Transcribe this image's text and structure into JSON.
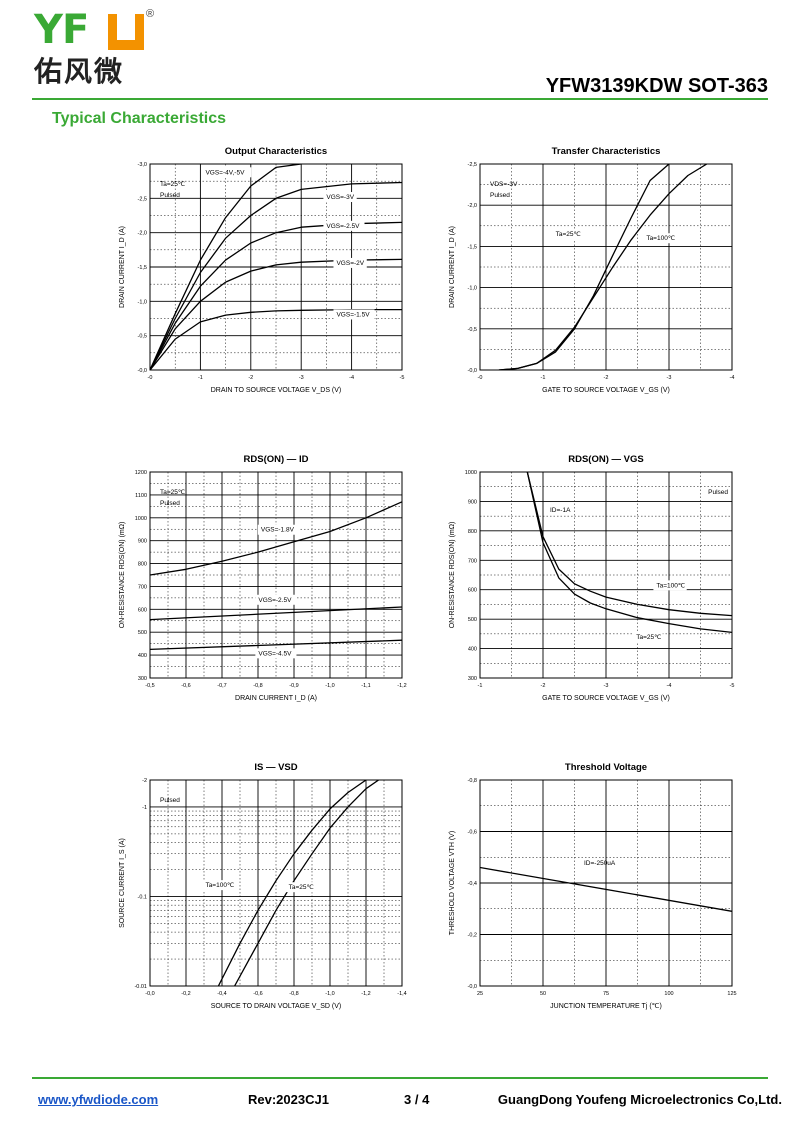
{
  "header": {
    "logo_text": "YFW",
    "logo_reg": "®",
    "logo_cn": "佑风微",
    "part": "YFW3139KDW SOT-363",
    "section": "Typical Characteristics"
  },
  "footer": {
    "url": "www.yfwdiode.com",
    "rev": "Rev:2023CJ1",
    "page": "3 / 4",
    "company": "GuangDong Youfeng Microelectronics Co,Ltd."
  },
  "colors": {
    "accent": "#3aa935",
    "logo_orange": "#f39200"
  },
  "chart_data": [
    {
      "id": "output",
      "type": "line",
      "title": "Output Characteristics",
      "xlabel": "DRAIN TO SOURCE VOLTAGE V_DS (V)",
      "ylabel": "DRAIN CURRENT I_D (A)",
      "xlim": [
        0,
        -5
      ],
      "ylim": [
        0,
        -3.0
      ],
      "xticks": [
        "-0",
        "-1",
        "-2",
        "-3",
        "-4",
        "-5"
      ],
      "yticks": [
        "-0,0",
        "-0,5",
        "-1,0",
        "-1,5",
        "-2,0",
        "-2,5",
        "-3,0"
      ],
      "notes": [
        "Ta=25℃",
        "Pulsed"
      ],
      "series": [
        {
          "name": "VGS=-4V,-5V",
          "x": [
            0,
            -0.5,
            -1,
            -1.5,
            -2,
            -2.5,
            -3
          ],
          "y": [
            0,
            -0.82,
            -1.6,
            -2.22,
            -2.68,
            -2.95,
            -3.0
          ]
        },
        {
          "name": "VGS=-3V",
          "x": [
            0,
            -0.5,
            -1,
            -1.5,
            -2,
            -2.5,
            -3,
            -4,
            -5
          ],
          "y": [
            0,
            -0.75,
            -1.42,
            -1.92,
            -2.25,
            -2.5,
            -2.63,
            -2.71,
            -2.73
          ]
        },
        {
          "name": "VGS=-2.5V",
          "x": [
            0,
            -0.5,
            -1,
            -1.5,
            -2,
            -2.5,
            -3,
            -4,
            -5
          ],
          "y": [
            0,
            -0.68,
            -1.22,
            -1.6,
            -1.85,
            -2.0,
            -2.08,
            -2.13,
            -2.15
          ]
        },
        {
          "name": "VGS=-2V",
          "x": [
            0,
            -0.5,
            -1,
            -1.5,
            -2,
            -2.5,
            -3,
            -4,
            -5
          ],
          "y": [
            0,
            -0.6,
            -1.0,
            -1.28,
            -1.44,
            -1.53,
            -1.57,
            -1.6,
            -1.61
          ]
        },
        {
          "name": "VGS=-1.5V",
          "x": [
            0,
            -0.5,
            -1,
            -1.5,
            -2,
            -2.5,
            -3,
            -4,
            -5
          ],
          "y": [
            0,
            -0.45,
            -0.7,
            -0.8,
            -0.84,
            -0.86,
            -0.87,
            -0.88,
            -0.88
          ]
        }
      ]
    },
    {
      "id": "transfer",
      "type": "line",
      "title": "Transfer Characteristics",
      "xlabel": "GATE TO SOURCE VOLTAGE V_GS (V)",
      "ylabel": "DRAIN CURRENT I_D (A)",
      "xlim": [
        0,
        -4
      ],
      "ylim": [
        0,
        -2.5
      ],
      "xticks": [
        "-0",
        "-1",
        "-2",
        "-3",
        "-4"
      ],
      "yticks": [
        "-0,0",
        "-0,5",
        "-1,0",
        "-1,5",
        "-2,0",
        "-2,5"
      ],
      "notes": [
        "VDS=-3V",
        "Pulsed"
      ],
      "series": [
        {
          "name": "Ta=25℃",
          "x": [
            -0.3,
            -0.6,
            -0.9,
            -1.2,
            -1.5,
            -1.8,
            -2.1,
            -2.4,
            -2.7,
            -3.0
          ],
          "y": [
            0,
            -0.02,
            -0.08,
            -0.22,
            -0.5,
            -0.9,
            -1.38,
            -1.85,
            -2.3,
            -2.5
          ]
        },
        {
          "name": "Ta=100℃",
          "x": [
            -0.3,
            -0.6,
            -0.9,
            -1.2,
            -1.5,
            -1.8,
            -2.1,
            -2.4,
            -2.7,
            -3.0,
            -3.3,
            -3.6
          ],
          "y": [
            0,
            -0.02,
            -0.08,
            -0.24,
            -0.52,
            -0.88,
            -1.24,
            -1.58,
            -1.88,
            -2.14,
            -2.36,
            -2.5
          ]
        }
      ]
    },
    {
      "id": "rds-id",
      "type": "line",
      "title": "RDS(ON) — ID",
      "xlabel": "DRAIN CURRENT I_D (A)",
      "ylabel": "ON-RESISTANCE RDS(ON) (mΩ)",
      "xlim": [
        -0.5,
        -1.2
      ],
      "ylim": [
        300,
        1200
      ],
      "xticks": [
        "-0,5",
        "-0,6",
        "-0,7",
        "-0,8",
        "-0,9",
        "-1,0",
        "-1,1",
        "-1,2"
      ],
      "yticks": [
        "300",
        "400",
        "500",
        "600",
        "700",
        "800",
        "900",
        "1000",
        "1100",
        "1200"
      ],
      "notes": [
        "Ta=25℃",
        "Pulsed"
      ],
      "series": [
        {
          "name": "VGS=-1.8V",
          "x": [
            -0.5,
            -0.6,
            -0.7,
            -0.8,
            -0.9,
            -1.0,
            -1.1,
            -1.2
          ],
          "y": [
            750,
            775,
            810,
            850,
            895,
            940,
            1000,
            1070
          ]
        },
        {
          "name": "VGS=-2.5V",
          "x": [
            -0.5,
            -1.2
          ],
          "y": [
            555,
            610
          ]
        },
        {
          "name": "VGS=-4.5V",
          "x": [
            -0.5,
            -1.2
          ],
          "y": [
            425,
            465
          ]
        }
      ]
    },
    {
      "id": "rds-vgs",
      "type": "line",
      "title": "RDS(ON) — VGS",
      "xlabel": "GATE TO SOURCE VOLTAGE V_GS (V)",
      "ylabel": "ON-RESISTANCE RDS(ON) (mΩ)",
      "xlim": [
        -1,
        -5
      ],
      "ylim": [
        300,
        1000
      ],
      "xticks": [
        "-1",
        "-2",
        "-3",
        "-4",
        "-5"
      ],
      "yticks": [
        "300",
        "400",
        "500",
        "600",
        "700",
        "800",
        "900",
        "1000"
      ],
      "notes": [
        "Pulsed",
        "ID=-1A"
      ],
      "series": [
        {
          "name": "Ta=100℃",
          "x": [
            -1.75,
            -2.0,
            -2.25,
            -2.5,
            -2.75,
            -3.0,
            -3.5,
            -4.0,
            -4.5,
            -5.0
          ],
          "y": [
            1000,
            780,
            670,
            620,
            595,
            575,
            550,
            532,
            520,
            512
          ]
        },
        {
          "name": "Ta=25℃",
          "x": [
            -1.75,
            -2.0,
            -2.25,
            -2.5,
            -2.75,
            -3.0,
            -3.5,
            -4.0,
            -4.5,
            -5.0
          ],
          "y": [
            1000,
            760,
            640,
            585,
            555,
            535,
            505,
            485,
            467,
            455
          ]
        }
      ]
    },
    {
      "id": "is-vsd",
      "type": "line",
      "title": "IS — VSD",
      "xlabel": "SOURCE TO DRAIN VOLTAGE V_SD (V)",
      "ylabel": "SOURCE CURRENT I_S (A)",
      "xlim": [
        0,
        -1.4
      ],
      "ylim": [
        -0.01,
        -2
      ],
      "yscale": "log",
      "xticks": [
        "-0,0",
        "-0,2",
        "-0,4",
        "-0,6",
        "-0,8",
        "-1,0",
        "-1,2",
        "-1,4"
      ],
      "yticks": [
        "-0.01",
        "-0.1",
        "-1",
        "-2"
      ],
      "notes": [
        "Pulsed"
      ],
      "series": [
        {
          "name": "Ta=100℃",
          "x": [
            -0.38,
            -0.5,
            -0.6,
            -0.7,
            -0.8,
            -0.9,
            -1.0,
            -1.1,
            -1.2
          ],
          "y": [
            -0.01,
            -0.03,
            -0.07,
            -0.15,
            -0.3,
            -0.55,
            -0.95,
            -1.45,
            -2.0
          ]
        },
        {
          "name": "Ta=25℃",
          "x": [
            -0.47,
            -0.6,
            -0.7,
            -0.8,
            -0.9,
            -1.0,
            -1.1,
            -1.2,
            -1.27
          ],
          "y": [
            -0.01,
            -0.03,
            -0.07,
            -0.15,
            -0.3,
            -0.58,
            -1.0,
            -1.6,
            -2.0
          ]
        }
      ]
    },
    {
      "id": "vth",
      "type": "line",
      "title": "Threshold Voltage",
      "xlabel": "JUNCTION TEMPERATURE Tj (℃)",
      "ylabel": "THRESHOLD VOLTAGE VTH (V)",
      "xlim": [
        25,
        125
      ],
      "ylim": [
        0,
        -0.8
      ],
      "xticks": [
        "25",
        "50",
        "75",
        "100",
        "125"
      ],
      "yticks": [
        "-0,0",
        "-0,2",
        "-0,4",
        "-0,6",
        "-0,8"
      ],
      "notes": [
        "ID=-250uA"
      ],
      "series": [
        {
          "name": "ID=-250uA",
          "x": [
            25,
            125
          ],
          "y": [
            -0.46,
            -0.29
          ]
        }
      ]
    }
  ]
}
